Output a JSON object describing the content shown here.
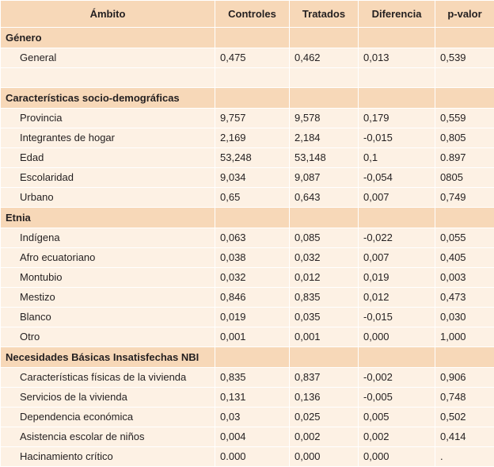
{
  "header": [
    "Ámbito",
    "Controles",
    "Tratados",
    "Diferencia",
    "p-valor"
  ],
  "sections": [
    {
      "title": "Género",
      "rows": [
        {
          "label": "General",
          "values": [
            "0,475",
            "0,462",
            "0,013",
            "0,539"
          ]
        }
      ],
      "spacer": true
    },
    {
      "title": "Características socio-demográficas",
      "rows": [
        {
          "label": "Provincia",
          "values": [
            "9,757",
            "9,578",
            "0,179",
            "0,559"
          ]
        },
        {
          "label": "Integrantes de hogar",
          "values": [
            "2,169",
            "2,184",
            "-0,015",
            "0,805"
          ]
        },
        {
          "label": "Edad",
          "values": [
            "53,248",
            "53,148",
            "0,1",
            "0.897"
          ]
        },
        {
          "label": "Escolaridad",
          "values": [
            "9,034",
            "9,087",
            "-0,054",
            "0805"
          ]
        },
        {
          "label": "Urbano",
          "values": [
            "0,65",
            "0,643",
            "0,007",
            "0,749"
          ]
        }
      ]
    },
    {
      "title": "Etnia",
      "rows": [
        {
          "label": "Indígena",
          "values": [
            "0,063",
            "0,085",
            "-0,022",
            "0,055"
          ]
        },
        {
          "label": "Afro ecuatoriano",
          "values": [
            "0,038",
            "0,032",
            "0,007",
            "0,405"
          ]
        },
        {
          "label": "Montubio",
          "values": [
            "0,032",
            "0,012",
            "0,019",
            "0,003"
          ]
        },
        {
          "label": "Mestizo",
          "values": [
            "0,846",
            "0,835",
            "0,012",
            "0,473"
          ]
        },
        {
          "label": "Blanco",
          "values": [
            "0,019",
            "0,035",
            "-0,015",
            "0,030"
          ]
        },
        {
          "label": "Otro",
          "values": [
            "0,001",
            "0,001",
            "0,000",
            "1,000"
          ]
        }
      ]
    },
    {
      "title": "Necesidades Básicas Insatisfechas NBI",
      "rows": [
        {
          "label": "Características físicas de la vivienda",
          "values": [
            "0,835",
            "0,837",
            "-0,002",
            "0,906"
          ]
        },
        {
          "label": "Servicios de la vivienda",
          "values": [
            "0,131",
            "0,136",
            "-0,005",
            "0,748"
          ]
        },
        {
          "label": "Dependencia económica",
          "values": [
            "0,03",
            "0,025",
            "0,005",
            "0,502"
          ]
        },
        {
          "label": "Asistencia escolar de niños",
          "values": [
            "0,004",
            "0,002",
            "0,002",
            "0,414"
          ]
        },
        {
          "label": "Hacinamiento crítico",
          "values": [
            "0.000",
            "0,000",
            "0,000",
            "."
          ]
        }
      ]
    }
  ]
}
